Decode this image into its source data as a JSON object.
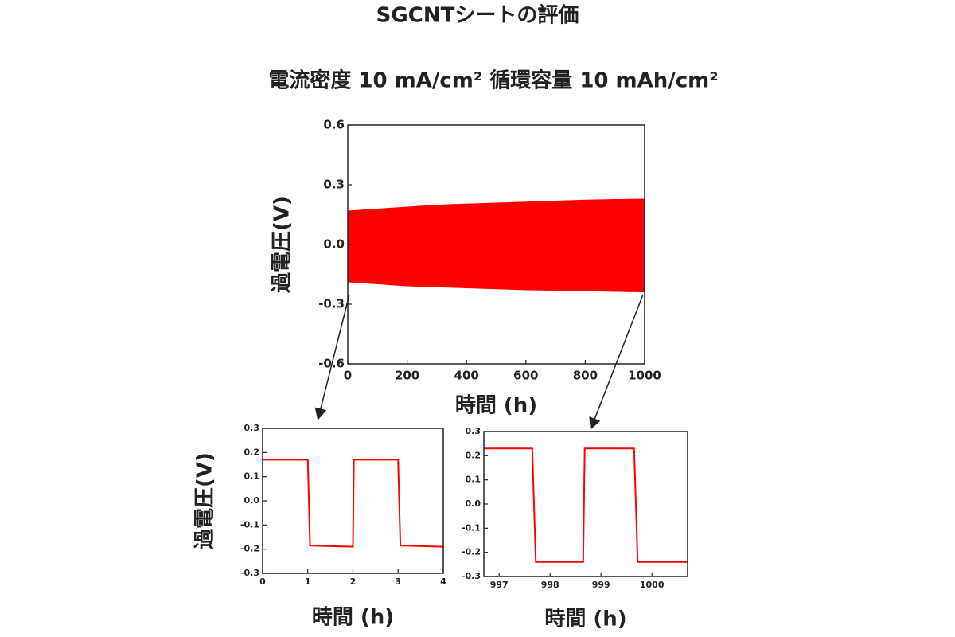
{
  "title": "SGCNTシートの評価",
  "subtitle": "電流密度 10 mA/cm² 循環容量 10 mAh/cm²",
  "chart_data": [
    {
      "type": "area",
      "xlabel": "時間 (h)",
      "ylabel": "過電圧(V)",
      "x": [
        0,
        100,
        200,
        300,
        400,
        500,
        600,
        700,
        800,
        900,
        1000
      ],
      "series": [
        {
          "color": "#ff0000",
          "values": [
            0.17,
            0.18,
            0.19,
            0.2,
            0.205,
            0.21,
            0.215,
            0.22,
            0.225,
            0.228,
            0.23
          ]
        },
        {
          "color": "#ff0000",
          "values": [
            -0.19,
            -0.2,
            -0.21,
            -0.215,
            -0.22,
            -0.225,
            -0.23,
            -0.232,
            -0.235,
            -0.238,
            -0.24
          ]
        }
      ],
      "xlim": [
        0,
        1000
      ],
      "xticks": [
        0,
        200,
        400,
        600,
        800,
        1000
      ],
      "ylim": [
        -0.6,
        0.6
      ],
      "yticks": [
        -0.6,
        -0.3,
        {
          "value": 0,
          "label": "0.0"
        },
        0.3,
        0.6
      ]
    },
    {
      "type": "line",
      "xlabel": "時間 (h)",
      "ylabel": "過電圧(V)",
      "x": [
        0,
        1,
        1.05,
        2,
        2.02,
        3,
        3.05,
        4
      ],
      "series": [
        {
          "color": "#ff0000",
          "values": [
            0.17,
            0.17,
            -0.185,
            -0.19,
            0.17,
            0.17,
            -0.185,
            -0.19
          ]
        }
      ],
      "xlim": [
        0,
        4
      ],
      "xticks": [
        0,
        1,
        2,
        3,
        4
      ],
      "ylim": [
        -0.3,
        0.3
      ],
      "yticks": [
        -0.3,
        -0.2,
        -0.1,
        {
          "value": 0,
          "label": "0.0"
        },
        0.1,
        0.2,
        0.3
      ]
    },
    {
      "type": "line",
      "xlabel": "時間 (h)",
      "x": [
        996.7,
        997.65,
        997.72,
        998.65,
        998.68,
        999.65,
        999.72,
        1000.7
      ],
      "series": [
        {
          "color": "#ff0000",
          "values": [
            0.23,
            0.23,
            -0.24,
            -0.24,
            0.23,
            0.23,
            -0.24,
            -0.24
          ]
        }
      ],
      "xlim": [
        996.7,
        1000.7
      ],
      "xticks": [
        997,
        998,
        999,
        1000
      ],
      "ylim": [
        -0.3,
        0.3
      ],
      "yticks": [
        -0.3,
        -0.2,
        -0.1,
        {
          "value": 0,
          "label": "0.0"
        },
        0.1,
        0.2,
        0.3
      ]
    }
  ]
}
